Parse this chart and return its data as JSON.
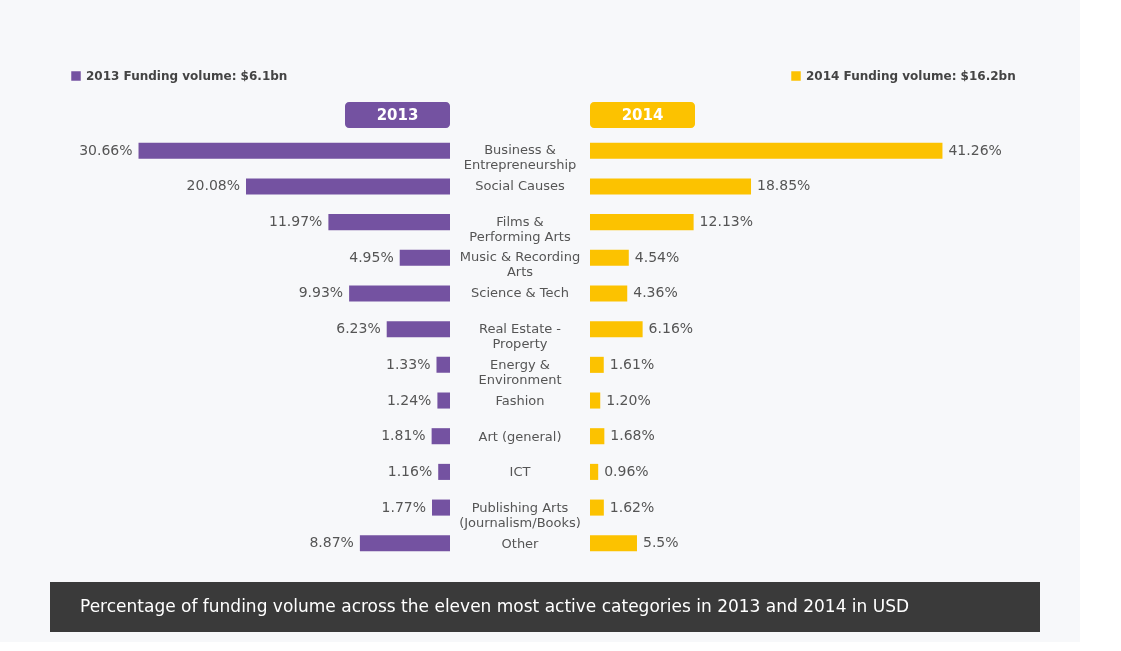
{
  "chart_data": [
    {
      "type": "bar",
      "orientation": "horizontal",
      "legend": "top left",
      "title": "2013",
      "categories": [
        "Business & Entrepreneurship",
        "Social Causes",
        "Films & Performing Arts",
        "Music & Recording Arts",
        "Science & Tech",
        "Real Estate - Property",
        "Energy & Environment",
        "Fashion",
        "Art (general)",
        "ICT",
        "Publishing Arts (Journalism/Books)",
        "Other"
      ],
      "series": [
        {
          "name": "2013 Funding volume: $6.1bn",
          "color": "#7452a1",
          "values": [
            30.66,
            20.08,
            11.97,
            4.95,
            9.93,
            6.23,
            1.33,
            1.24,
            1.81,
            1.16,
            1.77,
            8.87
          ],
          "value_labels": [
            "30.66%",
            "20.08%",
            "11.97%",
            "4.95%",
            "9.93%",
            "6.23%",
            "1.33%",
            "1.24%",
            "1.81%",
            "1.16%",
            "1.77%",
            "8.87%"
          ]
        }
      ],
      "annotations": [
        "Percentage of funding volume across the eleven most active categories in 2013 and 2014 in USD"
      ]
    },
    {
      "type": "bar",
      "orientation": "horizontal",
      "legend": "top right",
      "title": "2014",
      "categories": [
        null,
        null,
        null,
        null,
        null,
        null,
        null,
        null,
        null,
        null,
        null,
        null
      ],
      "series": [
        {
          "name": "2014 Funding volume: $16.2bn",
          "color": "#fcc200",
          "values": [
            41.26,
            18.85,
            12.13,
            4.54,
            4.36,
            6.16,
            1.61,
            1.2,
            1.68,
            0.96,
            1.62,
            5.5
          ],
          "value_labels": [
            "41.26%",
            "18.85%",
            "12.13%",
            "4.54%",
            "4.36%",
            "6.16%",
            "1.61%",
            "1.20%",
            "1.68%",
            "0.96%",
            "1.62%",
            "5.5%"
          ]
        }
      ]
    }
  ]
}
